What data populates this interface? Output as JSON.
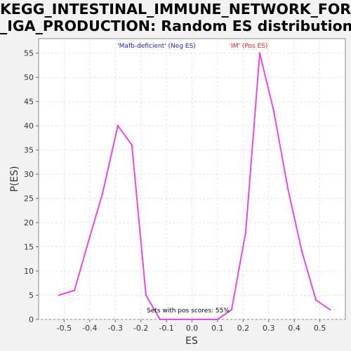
{
  "chart_data": {
    "type": "line",
    "title": [
      "KEGG_INTESTINAL_IMMUNE_NETWORK_FOR",
      "_IGA_PRODUCTION: Random ES distribution"
    ],
    "xlabel": "ES",
    "ylabel": "P(ES)",
    "xlim": [
      -0.6,
      0.6
    ],
    "ylim": [
      0,
      58
    ],
    "xticks": [
      -0.5,
      -0.4,
      -0.3,
      -0.2,
      -0.1,
      0.0,
      0.1,
      0.2,
      0.3,
      0.4,
      0.5
    ],
    "xtick_labels": [
      "-0.5",
      "-0.4",
      "-0.3",
      "-0.2",
      "-0.1",
      "0.0",
      "0.1",
      "0.2",
      "0.3",
      "0.4",
      "0.5"
    ],
    "yticks": [
      0,
      5,
      10,
      15,
      20,
      25,
      30,
      35,
      40,
      45,
      50,
      55
    ],
    "ytick_labels": [
      "0",
      "5",
      "10",
      "15",
      "20",
      "25",
      "30",
      "35",
      "40",
      "45",
      "50",
      "55"
    ],
    "grid": true,
    "series": [
      {
        "color": "#ee44ee",
        "x": [
          -0.52,
          -0.46,
          -0.4,
          -0.35,
          -0.29,
          -0.235,
          -0.18,
          -0.125,
          -0.07,
          -0.015,
          0.04,
          0.1,
          0.155,
          0.21,
          0.265,
          0.32,
          0.375,
          0.43,
          0.485,
          0.54
        ],
        "y": [
          5,
          6,
          17,
          26,
          40,
          36,
          5,
          0,
          0,
          0,
          0,
          0,
          2,
          18,
          55,
          43,
          27,
          14,
          4,
          2
        ]
      }
    ],
    "annotations": [
      {
        "text": "'Mafb-deficient' (Neg ES)",
        "color": "#2222bb"
      },
      {
        "text": "'IM' (Pos ES)",
        "color": "#dd2222"
      },
      {
        "text": "Sets with pos scores: 55%",
        "color": "#000000"
      }
    ]
  }
}
